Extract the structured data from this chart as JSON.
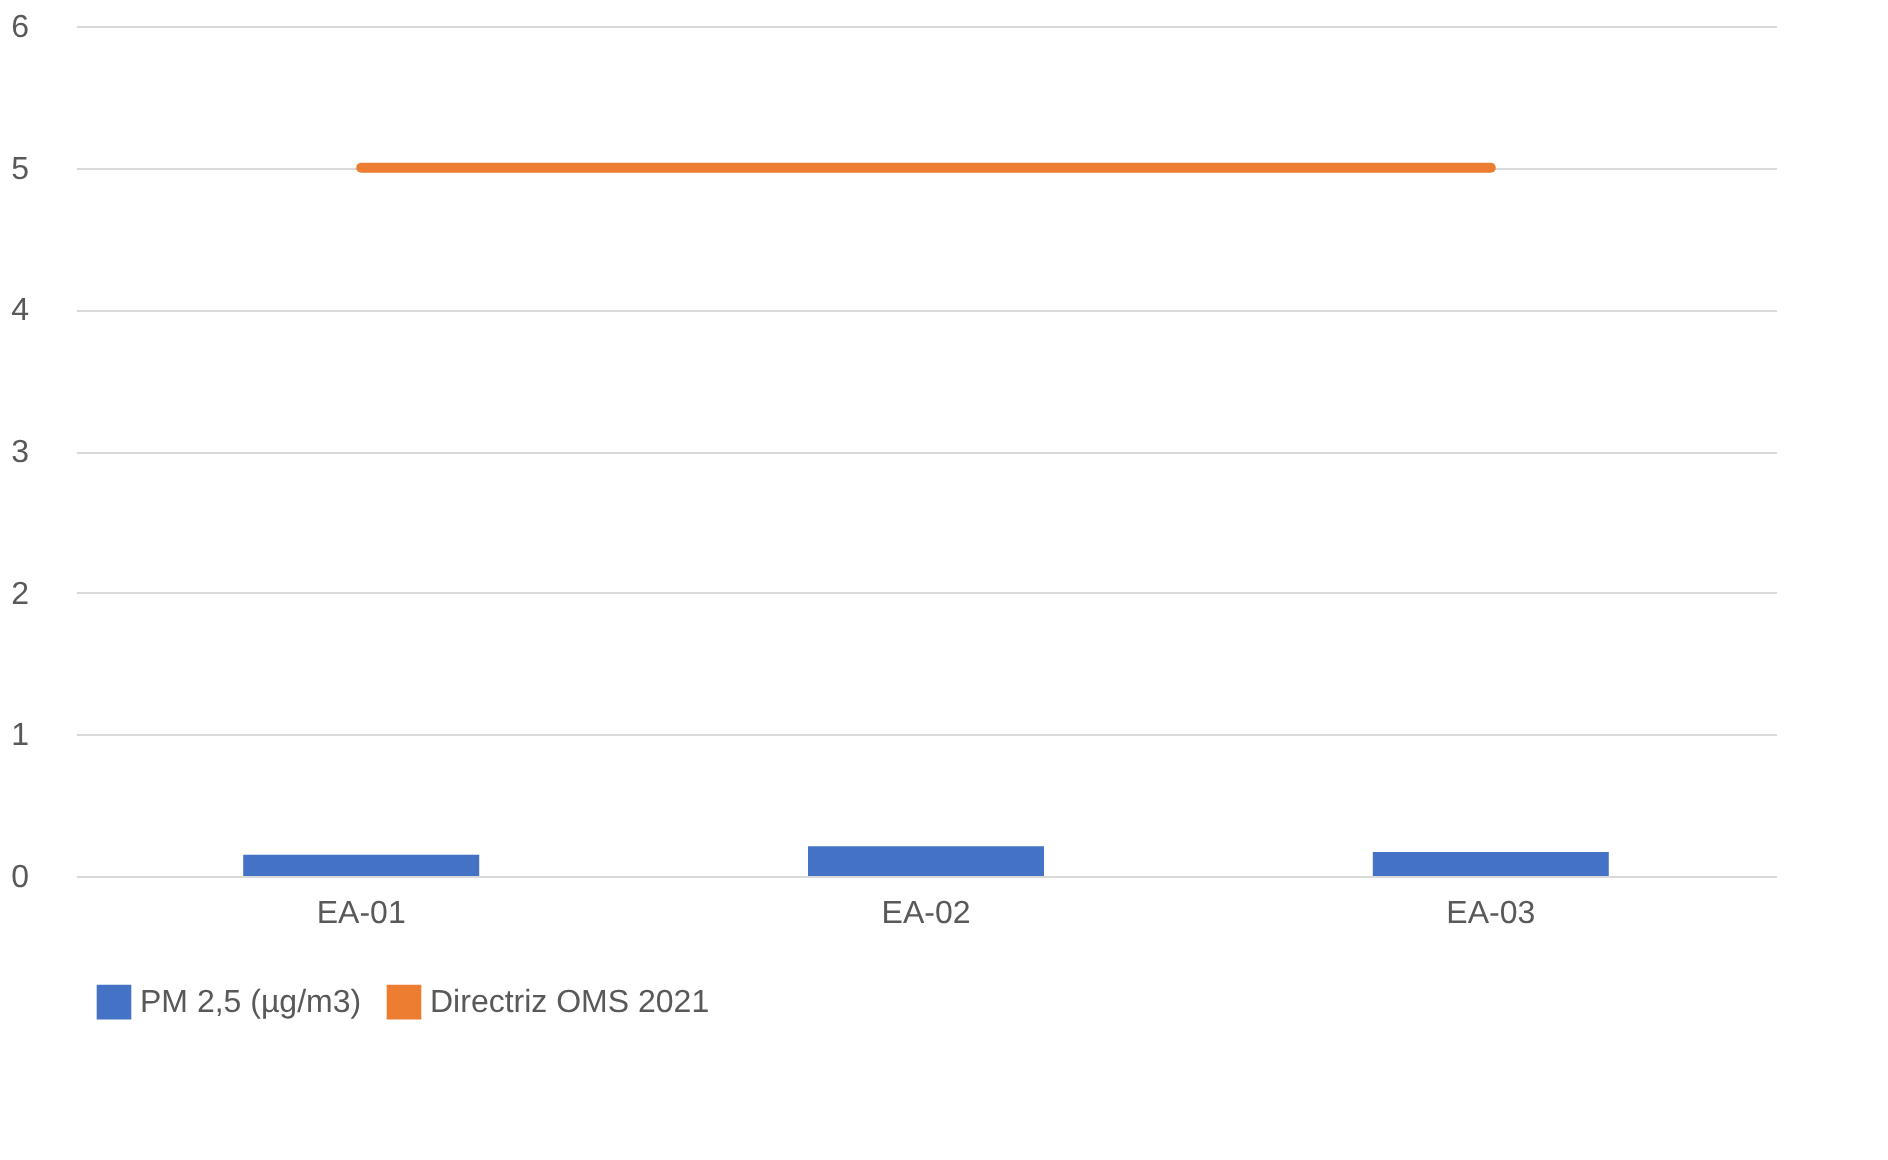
{
  "chart_data": {
    "type": "bar",
    "categories": [
      "EA-01",
      "EA-02",
      "EA-03"
    ],
    "series": [
      {
        "name": "PM 2,5 (µg/m3)",
        "color": "#4472c4",
        "values": [
          0.15,
          0.21,
          0.17
        ]
      },
      {
        "name": "Directriz OMS 2021",
        "color": "#ed7d31",
        "type": "line",
        "values": [
          5,
          5,
          5
        ]
      }
    ],
    "ylim": [
      0,
      6
    ],
    "yticks": [
      0,
      1,
      2,
      3,
      4,
      5,
      6
    ],
    "grid": "y",
    "legend": "bottom",
    "marker": "none",
    "line_style": "solid"
  }
}
